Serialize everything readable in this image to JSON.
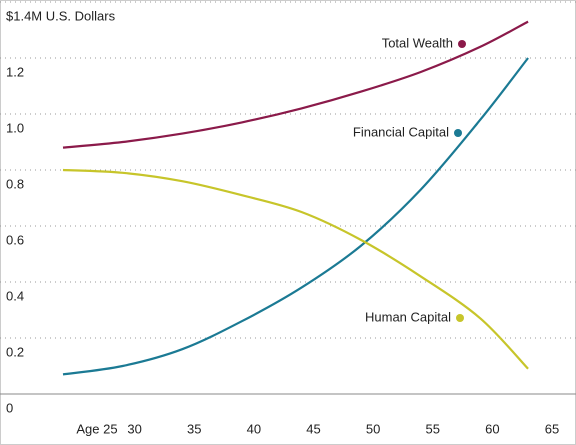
{
  "chart_data": {
    "type": "line",
    "x": [
      25,
      30,
      35,
      40,
      45,
      50,
      55,
      60,
      64
    ],
    "series": [
      {
        "name": "Total Wealth",
        "color": "#8b1a4a",
        "values": [
          0.88,
          0.9,
          0.93,
          0.97,
          1.02,
          1.08,
          1.15,
          1.24,
          1.33
        ]
      },
      {
        "name": "Financial Capital",
        "color": "#1b7a94",
        "values": [
          0.07,
          0.1,
          0.16,
          0.26,
          0.38,
          0.53,
          0.73,
          0.98,
          1.2
        ]
      },
      {
        "name": "Human Capital",
        "color": "#c7c52a",
        "values": [
          0.8,
          0.79,
          0.76,
          0.71,
          0.65,
          0.55,
          0.42,
          0.27,
          0.09
        ]
      }
    ],
    "xlim": [
      25,
      65
    ],
    "xticks": [
      {
        "value": 25,
        "label": "Age 25"
      },
      30,
      35,
      40,
      45,
      50,
      55,
      60,
      65
    ],
    "ylim": [
      0,
      1.4
    ],
    "yticks": [
      0,
      0.2,
      0.4,
      0.6,
      0.8,
      {
        "value": 1.0,
        "label": "1.0"
      },
      1.2,
      {
        "value": 1.4,
        "label": "$1.4M U.S. Dollars"
      }
    ],
    "grid": true
  }
}
